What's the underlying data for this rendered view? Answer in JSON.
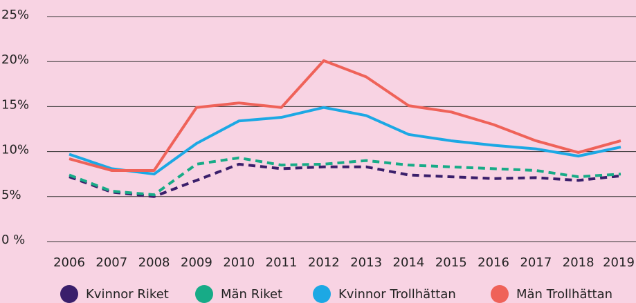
{
  "chart_data": {
    "type": "line",
    "categories": [
      "2006",
      "2007",
      "2008",
      "2009",
      "2010",
      "2011",
      "2012",
      "2013",
      "2014",
      "2015",
      "2016",
      "2017",
      "2018",
      "2019"
    ],
    "series": [
      {
        "name": "Kvinnor Riket",
        "color": "#3a1f6b",
        "dashed": true,
        "values": [
          7.2,
          5.5,
          5.0,
          6.8,
          8.6,
          8.1,
          8.3,
          8.3,
          7.4,
          7.2,
          7.0,
          7.1,
          6.8,
          7.3
        ]
      },
      {
        "name": "Män Riket",
        "color": "#17ab87",
        "dashed": true,
        "values": [
          7.4,
          5.6,
          5.2,
          8.6,
          9.3,
          8.5,
          8.6,
          9.0,
          8.5,
          8.3,
          8.1,
          7.9,
          7.2,
          7.5
        ]
      },
      {
        "name": "Kvinnor Trollhättan",
        "color": "#1ca8e4",
        "dashed": false,
        "values": [
          9.7,
          8.1,
          7.5,
          10.9,
          13.4,
          13.8,
          14.9,
          14.0,
          11.9,
          11.2,
          10.7,
          10.3,
          9.5,
          10.5
        ]
      },
      {
        "name": "Män Trollhättan",
        "color": "#ef6259",
        "dashed": false,
        "values": [
          9.2,
          7.9,
          7.9,
          14.9,
          15.4,
          14.9,
          20.1,
          18.3,
          15.1,
          14.4,
          13.0,
          11.2,
          9.9,
          11.2
        ]
      }
    ],
    "ylim": [
      0,
      25
    ],
    "yticks": [
      {
        "value": 0,
        "label": "0 %"
      },
      {
        "value": 5,
        "label": "5%"
      },
      {
        "value": 10,
        "label": "10%"
      },
      {
        "value": 15,
        "label": "15%"
      },
      {
        "value": 20,
        "label": "20%"
      },
      {
        "value": 25,
        "label": "25%"
      }
    ],
    "grid": true,
    "legend": "bottom"
  }
}
